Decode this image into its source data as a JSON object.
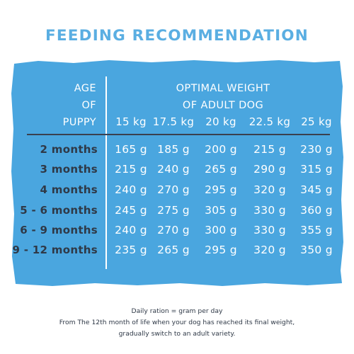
{
  "title": "FEEDING RECOMMENDATION",
  "colors": {
    "title": "#5aaee2",
    "panel": "#4aa6df",
    "age_text": "#2f3947",
    "value_text": "#ffffff"
  },
  "header": {
    "age_lines": [
      "AGE",
      "OF",
      "PUPPY"
    ],
    "weight_lines": [
      "OPTIMAL WEIGHT",
      "OF ADULT DOG"
    ],
    "weights": [
      "15 kg",
      "17.5 kg",
      "20 kg",
      "22.5 kg",
      "25 kg"
    ]
  },
  "rows": [
    {
      "age": "2 months",
      "values": [
        "165 g",
        "185 g",
        "200 g",
        "215 g",
        "230 g"
      ]
    },
    {
      "age": "3 months",
      "values": [
        "215 g",
        "240 g",
        "265 g",
        "290 g",
        "315 g"
      ]
    },
    {
      "age": "4 months",
      "values": [
        "240 g",
        "270 g",
        "295 g",
        "320 g",
        "345 g"
      ]
    },
    {
      "age": "5 - 6 months",
      "values": [
        "245 g",
        "275 g",
        "305 g",
        "330 g",
        "360 g"
      ]
    },
    {
      "age": "6 - 9 months",
      "values": [
        "240 g",
        "270 g",
        "300 g",
        "330 g",
        "355 g"
      ]
    },
    {
      "age": "9 - 12 months",
      "values": [
        "235 g",
        "265 g",
        "295 g",
        "320 g",
        "350 g"
      ]
    }
  ],
  "footer": [
    "Daily ration = gram per day",
    "From The 12th month of life when your dog has reached its final weight,",
    "gradually switch to an adult variety."
  ]
}
